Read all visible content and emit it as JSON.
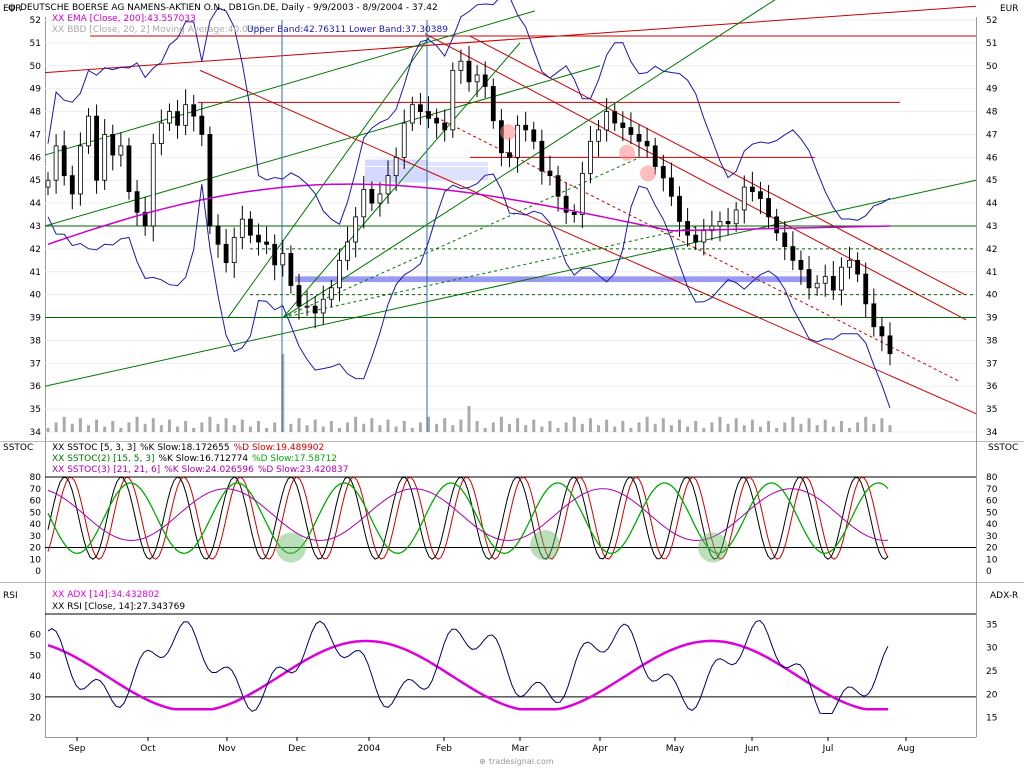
{
  "header": {
    "title": "DEUTSCHE BOERSE AG NAMENS-AKTIEN O.N., DB1Gn.DE, Daily - 9/9/2003 - 8/9/2004 - 37.42",
    "currency_left": "EUR",
    "currency_right": "EUR",
    "ema_label": "XX EMA [Close, 200]:43.557033",
    "bbd_label": "XX BBD [Close, 20, 2] Moving Average:40.0335",
    "bbd_bands": "Upper Band:42.76311 Lower Band:37.30389"
  },
  "sstoc": {
    "label_left": "SSTOC",
    "label_right": "SSTOC",
    "lines": [
      {
        "name": "XX SSTOC [5, 3, 3]",
        "k": "%K Slow:18.172655",
        "d": "%D Slow:19.489902"
      },
      {
        "name": "XX SSTOC(2) [15, 5, 3]",
        "k": "%K Slow:16.712774",
        "d": "%D Slow:17.58712"
      },
      {
        "name": "XX SSTOC(3) [21, 21, 6]",
        "k": "%K Slow:24.026596",
        "d": "%D Slow:23.420837"
      }
    ]
  },
  "rsi": {
    "label_left": "RSI",
    "label_right": "ADX-R",
    "adx_label": "XX ADX [14]:34.432802",
    "rsi_label": "XX RSI [Close, 14]:27.343769"
  },
  "footer": {
    "watermark": "tradesignal.com"
  },
  "colors": {
    "candle": "#000000",
    "ema": "#cc00cc",
    "bollinger": "#1a1aaa",
    "trend_red": "#cc0000",
    "trend_green": "#007700",
    "support_green": "#006600",
    "zone_blue": "#ccd0ff",
    "rsi": "#000066",
    "adx": "#dd00dd"
  },
  "chart_data": [
    {
      "type": "candlestick",
      "name": "price",
      "x": [
        "Sep",
        "Oct",
        "Nov",
        "Dec",
        "2004",
        "Feb",
        "Mar",
        "Apr",
        "May",
        "Jun",
        "Jul",
        "Aug"
      ],
      "close_series": [
        45,
        46.5,
        45.2,
        44.4,
        46.5,
        47.8,
        45,
        47,
        46.1,
        46.5,
        44.5,
        43.6,
        43,
        46.6,
        47.5,
        48,
        47.4,
        48.3,
        47.8,
        47,
        43,
        42.2,
        41.4,
        42.5,
        43.3,
        42.6,
        42.3,
        42.2,
        41.3,
        41.8,
        40.4,
        39.5,
        39.5,
        39.2,
        39.8,
        40.3,
        41.5,
        42.3,
        43.4,
        44.6,
        44,
        44.4,
        45.2,
        46,
        47.5,
        48.3,
        48,
        47.7,
        47.5,
        47.2,
        49.8,
        50.2,
        49.3,
        49.6,
        49.1,
        47.6,
        46.2,
        46,
        47.4,
        47.2,
        46.7,
        45.4,
        45.2,
        44.3,
        43.6,
        43.5,
        45.3,
        46.7,
        47.2,
        48,
        47.5,
        47.3,
        47,
        46.7,
        46.5,
        45.6,
        45.1,
        44.3,
        43.2,
        42.6,
        42.3,
        42.8,
        43,
        43.2,
        43.1,
        43.7,
        44.7,
        44.5,
        44.2,
        43.4,
        42.7,
        42.1,
        41.5,
        41.1,
        40.3,
        40.5,
        40.8,
        40.2,
        41.2,
        41.5,
        40.9,
        39.6,
        38.6,
        38.2,
        37.42
      ],
      "volume_note": "volume histogram shown along the bottom of the price panel",
      "ema_200_last": 43.557033,
      "bollinger": {
        "ma": 40.0335,
        "upper": 42.76311,
        "lower": 37.30389
      },
      "ylim": [
        34,
        52
      ],
      "y_ticks": [
        34,
        35,
        36,
        37,
        38,
        39,
        40,
        41,
        42,
        43,
        44,
        45,
        46,
        47,
        48,
        49,
        50,
        51,
        52
      ],
      "ylabel": "EUR"
    },
    {
      "type": "line",
      "name": "sstoc",
      "ylim": [
        0,
        80
      ],
      "y_ticks": [
        0,
        10,
        20,
        30,
        40,
        50,
        60,
        70,
        80
      ],
      "reference_lines": [
        20,
        80
      ],
      "series": [
        {
          "name": "XX SSTOC [5, 3, 3]",
          "last_k": 18.172655,
          "last_d": 19.489902
        },
        {
          "name": "XX SSTOC(2) [15, 5, 3]",
          "last_k": 16.712774,
          "last_d": 17.58712
        },
        {
          "name": "XX SSTOC(3) [21, 21, 6]",
          "last_k": 24.026596,
          "last_d": 23.420837
        }
      ]
    },
    {
      "type": "line",
      "name": "rsi_adx",
      "ylim_left": [
        15,
        70
      ],
      "y_ticks_left": [
        20,
        30,
        40,
        50,
        60
      ],
      "y_ticks_right": [
        15,
        20,
        25,
        30,
        35
      ],
      "reference_lines": [
        30,
        70
      ],
      "series": [
        {
          "name": "XX RSI [Close, 14]",
          "last": 27.343769
        },
        {
          "name": "XX ADX [14]",
          "last": 34.432802
        }
      ]
    }
  ]
}
